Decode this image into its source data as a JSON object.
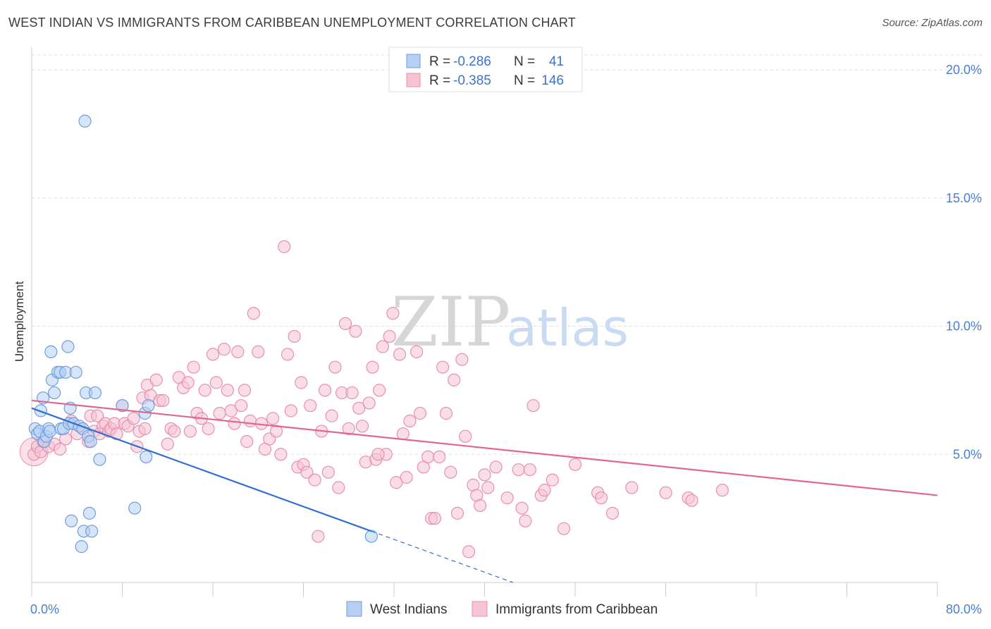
{
  "title": "WEST INDIAN VS IMMIGRANTS FROM CARIBBEAN UNEMPLOYMENT CORRELATION CHART",
  "source": "Source: ZipAtlas.com",
  "watermark": {
    "part1": "ZIP",
    "part2": "atlas"
  },
  "colors": {
    "blue_fill": "#b7cff2",
    "blue_stroke": "#6d9ee0",
    "blue_line": "#2f6fd0",
    "pink_fill": "#f6c3d3",
    "pink_stroke": "#e98fae",
    "pink_line": "#e0678f",
    "grid": "#dddddd",
    "axis_label": "#4a7fd1"
  },
  "legend": {
    "rows": [
      {
        "r_label": "R = ",
        "r_value": "-0.286",
        "n_label": "N = ",
        "n_value": "41",
        "series": "blue"
      },
      {
        "r_label": "R = ",
        "r_value": "-0.385",
        "n_label": "N = ",
        "n_value": "146",
        "series": "pink"
      }
    ]
  },
  "chart_data": {
    "type": "scatter",
    "title": "WEST INDIAN VS IMMIGRANTS FROM CARIBBEAN UNEMPLOYMENT CORRELATION CHART",
    "xlabel": "",
    "ylabel": "Unemployment",
    "xlim": [
      0,
      80
    ],
    "ylim": [
      0,
      20.8
    ],
    "x_tick_labels": [
      {
        "value": 0,
        "label": "0.0%"
      },
      {
        "value": 80,
        "label": "80.0%"
      }
    ],
    "y_tick_labels": [
      {
        "value": 5,
        "label": "5.0%"
      },
      {
        "value": 10,
        "label": "10.0%"
      },
      {
        "value": 15,
        "label": "15.0%"
      },
      {
        "value": 20,
        "label": "20.0%"
      }
    ],
    "x_minor_ticks": [
      0,
      8,
      16,
      24,
      32,
      40,
      48,
      56,
      64,
      72,
      80
    ],
    "grid": true,
    "legend_position": "top-center",
    "series": [
      {
        "name": "West Indians",
        "color": "blue",
        "r": -0.286,
        "n": 41,
        "trend": {
          "x0": 0,
          "y0": 6.8,
          "x1": 30,
          "y1": 2.0,
          "dash_to_x": 42.5,
          "dash_to_y": 0
        },
        "points": [
          [
            0.3,
            6.0
          ],
          [
            0.5,
            5.8
          ],
          [
            0.7,
            5.9
          ],
          [
            0.8,
            6.7
          ],
          [
            1.0,
            7.2
          ],
          [
            1.1,
            5.5
          ],
          [
            1.3,
            5.7
          ],
          [
            1.5,
            6.0
          ],
          [
            1.6,
            5.9
          ],
          [
            1.7,
            9.0
          ],
          [
            1.8,
            7.9
          ],
          [
            2.0,
            7.4
          ],
          [
            2.3,
            8.2
          ],
          [
            2.5,
            8.2
          ],
          [
            2.6,
            6.0
          ],
          [
            2.8,
            6.0
          ],
          [
            3.0,
            8.2
          ],
          [
            3.2,
            9.2
          ],
          [
            3.3,
            6.2
          ],
          [
            3.4,
            6.8
          ],
          [
            3.5,
            2.4
          ],
          [
            3.7,
            6.2
          ],
          [
            3.9,
            8.2
          ],
          [
            4.2,
            6.1
          ],
          [
            4.4,
            1.4
          ],
          [
            4.5,
            6.0
          ],
          [
            4.6,
            2.0
          ],
          [
            4.7,
            18.0
          ],
          [
            4.8,
            7.4
          ],
          [
            5.0,
            5.7
          ],
          [
            5.1,
            2.7
          ],
          [
            5.2,
            5.5
          ],
          [
            5.3,
            2.0
          ],
          [
            5.6,
            7.4
          ],
          [
            6.0,
            4.8
          ],
          [
            8.0,
            6.9
          ],
          [
            9.1,
            2.9
          ],
          [
            10.0,
            6.6
          ],
          [
            10.1,
            4.9
          ],
          [
            10.3,
            6.9
          ],
          [
            30.0,
            1.8
          ]
        ]
      },
      {
        "name": "Immigrants from Caribbean",
        "color": "pink",
        "r": -0.385,
        "n": 146,
        "trend": {
          "x0": 0,
          "y0": 7.1,
          "x1": 80,
          "y1": 3.4
        },
        "points": [
          [
            0.2,
            5.0
          ],
          [
            0.5,
            5.3
          ],
          [
            0.8,
            5.1
          ],
          [
            1.0,
            5.5
          ],
          [
            1.5,
            5.3
          ],
          [
            2.0,
            5.4
          ],
          [
            2.5,
            5.2
          ],
          [
            3.0,
            5.6
          ],
          [
            3.5,
            6.3
          ],
          [
            4.0,
            5.8
          ],
          [
            4.5,
            6.0
          ],
          [
            5.0,
            5.5
          ],
          [
            5.2,
            6.5
          ],
          [
            5.5,
            5.9
          ],
          [
            5.8,
            6.5
          ],
          [
            6.0,
            5.8
          ],
          [
            6.3,
            6.1
          ],
          [
            6.5,
            6.2
          ],
          [
            6.8,
            5.9
          ],
          [
            7.0,
            6.0
          ],
          [
            7.3,
            6.2
          ],
          [
            7.5,
            5.8
          ],
          [
            8.0,
            6.9
          ],
          [
            8.2,
            6.2
          ],
          [
            8.5,
            6.1
          ],
          [
            9.0,
            6.4
          ],
          [
            9.3,
            5.3
          ],
          [
            9.5,
            5.9
          ],
          [
            9.8,
            7.2
          ],
          [
            10.0,
            6.0
          ],
          [
            10.2,
            7.7
          ],
          [
            10.5,
            7.3
          ],
          [
            11.0,
            7.9
          ],
          [
            11.3,
            7.1
          ],
          [
            11.6,
            7.1
          ],
          [
            12.0,
            5.4
          ],
          [
            12.3,
            6.0
          ],
          [
            12.6,
            5.9
          ],
          [
            13.0,
            8.0
          ],
          [
            13.4,
            7.6
          ],
          [
            13.8,
            7.8
          ],
          [
            14.0,
            5.9
          ],
          [
            14.3,
            8.4
          ],
          [
            14.6,
            6.6
          ],
          [
            15.0,
            6.4
          ],
          [
            15.3,
            7.5
          ],
          [
            15.6,
            6.0
          ],
          [
            16.0,
            8.9
          ],
          [
            16.3,
            7.8
          ],
          [
            16.6,
            6.6
          ],
          [
            17.0,
            9.1
          ],
          [
            17.3,
            7.5
          ],
          [
            17.6,
            6.7
          ],
          [
            17.9,
            6.2
          ],
          [
            18.2,
            9.0
          ],
          [
            18.5,
            6.9
          ],
          [
            18.8,
            7.5
          ],
          [
            19.0,
            5.5
          ],
          [
            19.3,
            6.3
          ],
          [
            19.6,
            10.5
          ],
          [
            20.0,
            9.0
          ],
          [
            20.3,
            6.2
          ],
          [
            20.6,
            5.2
          ],
          [
            21.0,
            5.6
          ],
          [
            21.3,
            6.4
          ],
          [
            21.6,
            5.9
          ],
          [
            22.0,
            5.0
          ],
          [
            22.3,
            13.1
          ],
          [
            22.6,
            8.9
          ],
          [
            22.9,
            6.7
          ],
          [
            23.2,
            9.6
          ],
          [
            23.5,
            4.5
          ],
          [
            23.8,
            7.8
          ],
          [
            24.0,
            4.6
          ],
          [
            24.3,
            4.3
          ],
          [
            24.6,
            6.9
          ],
          [
            25.0,
            4.0
          ],
          [
            25.3,
            1.8
          ],
          [
            25.6,
            5.9
          ],
          [
            25.9,
            7.5
          ],
          [
            26.2,
            4.3
          ],
          [
            26.5,
            6.5
          ],
          [
            26.8,
            8.4
          ],
          [
            27.1,
            3.7
          ],
          [
            27.4,
            7.4
          ],
          [
            27.7,
            10.1
          ],
          [
            28.0,
            6.0
          ],
          [
            28.3,
            7.4
          ],
          [
            28.6,
            9.8
          ],
          [
            28.9,
            6.8
          ],
          [
            29.2,
            6.1
          ],
          [
            29.5,
            4.7
          ],
          [
            29.8,
            7.0
          ],
          [
            30.1,
            8.4
          ],
          [
            30.4,
            4.8
          ],
          [
            30.7,
            7.5
          ],
          [
            31.0,
            9.2
          ],
          [
            31.3,
            5.0
          ],
          [
            31.6,
            9.6
          ],
          [
            31.9,
            10.5
          ],
          [
            32.2,
            3.9
          ],
          [
            32.5,
            8.9
          ],
          [
            32.8,
            5.8
          ],
          [
            33.1,
            4.1
          ],
          [
            33.4,
            6.3
          ],
          [
            34.0,
            9.0
          ],
          [
            34.3,
            6.6
          ],
          [
            34.6,
            4.5
          ],
          [
            35.0,
            4.9
          ],
          [
            35.3,
            2.5
          ],
          [
            35.6,
            2.5
          ],
          [
            36.0,
            4.9
          ],
          [
            36.3,
            8.4
          ],
          [
            36.6,
            6.6
          ],
          [
            37.0,
            4.3
          ],
          [
            37.3,
            7.9
          ],
          [
            37.6,
            2.7
          ],
          [
            38.0,
            8.7
          ],
          [
            38.3,
            5.7
          ],
          [
            38.6,
            1.2
          ],
          [
            39.0,
            3.8
          ],
          [
            39.3,
            3.4
          ],
          [
            39.6,
            3.0
          ],
          [
            40.0,
            4.2
          ],
          [
            40.3,
            3.7
          ],
          [
            41.0,
            4.5
          ],
          [
            42.0,
            3.3
          ],
          [
            43.0,
            4.4
          ],
          [
            43.3,
            2.9
          ],
          [
            43.6,
            2.4
          ],
          [
            44.0,
            4.4
          ],
          [
            44.3,
            6.9
          ],
          [
            45.0,
            3.4
          ],
          [
            45.3,
            3.6
          ],
          [
            46.0,
            4.0
          ],
          [
            47.0,
            2.1
          ],
          [
            48.0,
            4.6
          ],
          [
            50.0,
            3.5
          ],
          [
            50.3,
            3.3
          ],
          [
            51.3,
            2.7
          ],
          [
            53.0,
            3.7
          ],
          [
            56.0,
            3.5
          ],
          [
            58.0,
            3.3
          ],
          [
            58.3,
            3.2
          ],
          [
            61.0,
            3.6
          ],
          [
            30.6,
            5.0
          ]
        ]
      }
    ]
  },
  "bottom_legend": [
    {
      "label": "West Indians",
      "series": "blue"
    },
    {
      "label": "Immigrants from Caribbean",
      "series": "pink"
    }
  ]
}
